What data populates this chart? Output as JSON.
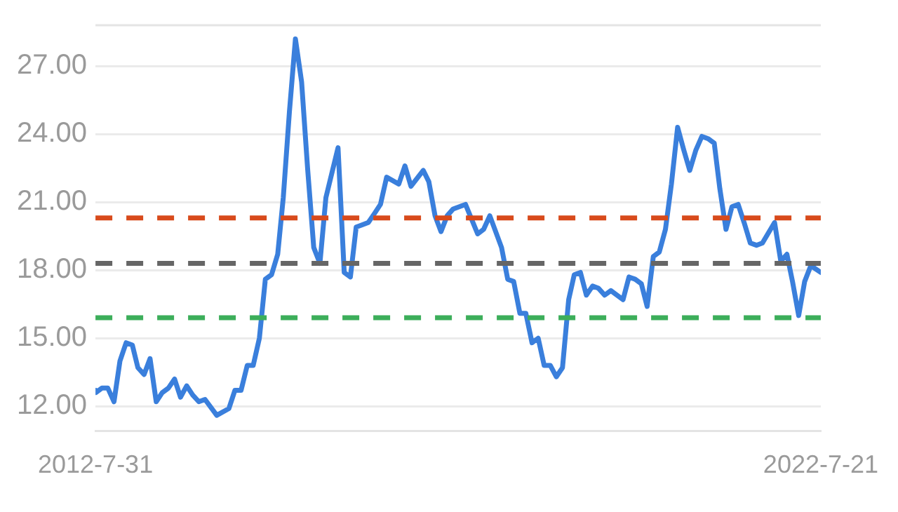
{
  "chart_data": {
    "type": "line",
    "x": [
      "2012-07-31",
      "2012-08",
      "2012-09",
      "2012-10",
      "2012-11",
      "2012-12",
      "2013-01",
      "2013-02",
      "2013-03",
      "2013-04",
      "2013-05",
      "2013-06",
      "2013-07",
      "2013-08",
      "2013-09",
      "2013-10",
      "2013-11",
      "2013-12",
      "2014-01",
      "2014-02",
      "2014-04",
      "2014-06",
      "2014-07",
      "2014-08",
      "2014-09",
      "2014-10",
      "2014-11",
      "2014-12",
      "2015-01",
      "2015-02",
      "2015-03",
      "2015-04",
      "2015-05",
      "2015-06",
      "2015-07",
      "2015-08",
      "2015-09",
      "2015-10",
      "2015-12",
      "2016-01",
      "2016-02",
      "2016-03",
      "2016-04",
      "2016-05",
      "2016-06",
      "2016-07",
      "2016-08",
      "2016-10",
      "2016-11",
      "2016-12",
      "2017-02",
      "2017-03",
      "2017-04",
      "2017-05",
      "2017-06",
      "2017-07",
      "2017-09",
      "2017-11",
      "2017-12",
      "2018-01",
      "2018-03",
      "2018-04",
      "2018-05",
      "2018-06",
      "2018-07",
      "2018-08",
      "2018-09",
      "2018-10",
      "2018-11",
      "2018-12",
      "2019-01",
      "2019-02",
      "2019-03",
      "2019-04",
      "2019-05",
      "2019-06",
      "2019-07",
      "2019-08",
      "2019-09",
      "2019-11",
      "2019-12",
      "2020-01",
      "2020-02",
      "2020-03",
      "2020-04",
      "2020-05",
      "2020-06",
      "2020-07",
      "2020-08",
      "2020-09",
      "2020-10",
      "2020-11",
      "2020-12",
      "2021-01",
      "2021-02",
      "2021-03",
      "2021-04",
      "2021-05",
      "2021-06",
      "2021-07",
      "2021-08",
      "2021-09",
      "2021-10",
      "2021-12",
      "2022-01",
      "2022-02",
      "2022-03",
      "2022-04",
      "2022-05",
      "2022-06",
      "2022-07-21"
    ],
    "series": [
      {
        "color": "#3a7fdc",
        "values": [
          12.7,
          12.6,
          12.8,
          12.8,
          12.2,
          14.0,
          14.8,
          14.7,
          13.7,
          13.4,
          14.1,
          12.2,
          12.6,
          12.8,
          13.2,
          12.4,
          12.9,
          12.5,
          12.2,
          12.3,
          11.6,
          11.9,
          12.7,
          12.7,
          13.8,
          13.8,
          15.0,
          17.6,
          17.8,
          18.7,
          21.2,
          25.0,
          28.2,
          26.3,
          22.5,
          19.0,
          18.3,
          21.2,
          23.4,
          17.9,
          17.7,
          19.9,
          20.0,
          20.1,
          20.5,
          20.9,
          22.1,
          21.8,
          22.6,
          21.7,
          22.4,
          21.9,
          20.4,
          19.7,
          20.4,
          20.7,
          20.9,
          19.6,
          19.8,
          20.4,
          19.0,
          17.6,
          17.5,
          16.1,
          16.1,
          14.8,
          15.0,
          13.8,
          13.8,
          13.3,
          13.7,
          16.7,
          17.8,
          17.9,
          16.9,
          17.3,
          17.2,
          16.9,
          17.1,
          16.7,
          17.7,
          17.6,
          17.4,
          16.4,
          18.6,
          18.8,
          19.8,
          21.8,
          24.3,
          23.3,
          22.4,
          23.3,
          23.9,
          23.8,
          23.6,
          21.6,
          19.8,
          20.8,
          20.9,
          20.1,
          19.2,
          19.1,
          19.2,
          20.1,
          18.4,
          18.7,
          17.5,
          16.0,
          17.5,
          18.2,
          17.9
        ]
      }
    ],
    "xlim": [
      "2012-07-31",
      "2022-07-21"
    ],
    "xticks": [
      {
        "value": "2012-07-31",
        "label": "2012-7-31"
      },
      {
        "value": "2022-07-21",
        "label": "2022-7-21"
      }
    ],
    "ylim": [
      10.9,
      28.8
    ],
    "yticks": [
      {
        "value": 12,
        "label": "12.00"
      },
      {
        "value": 15,
        "label": "15.00"
      },
      {
        "value": 18,
        "label": "18.00"
      },
      {
        "value": 21,
        "label": "21.00"
      },
      {
        "value": 24,
        "label": "24.00"
      },
      {
        "value": 27,
        "label": "27.00"
      }
    ],
    "ref_lines": [
      {
        "axis": "y",
        "value": 20.3,
        "color": "#d84a1b",
        "line_style": "dashed"
      },
      {
        "axis": "y",
        "value": 18.3,
        "color": "#666666",
        "line_style": "dashed"
      },
      {
        "axis": "y",
        "value": 15.9,
        "color": "#3cae5a",
        "line_style": "dashed"
      }
    ],
    "grid": "y",
    "legend": false,
    "marker": "none",
    "line_style": "solid"
  }
}
